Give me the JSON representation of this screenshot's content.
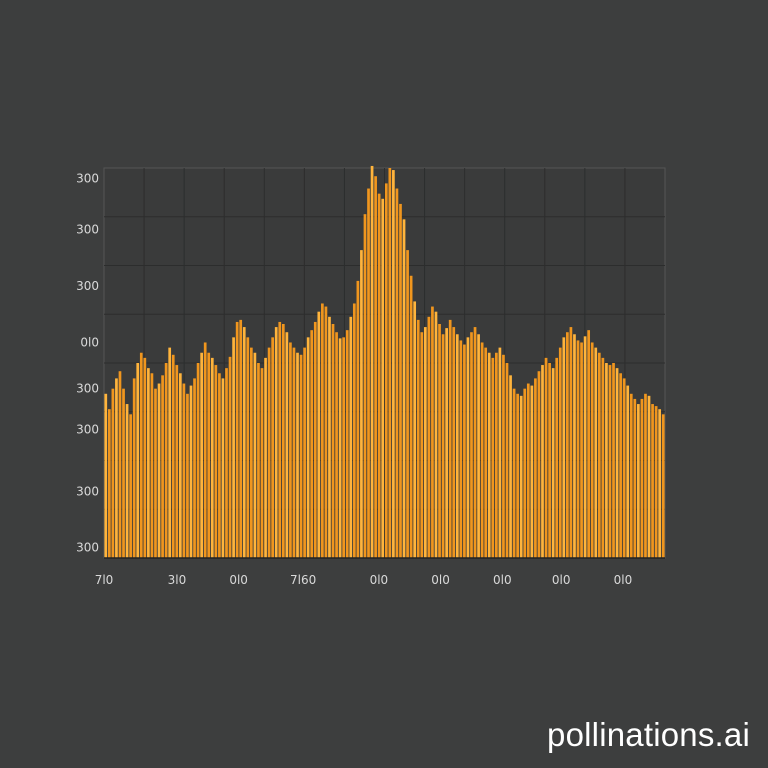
{
  "chart_data": {
    "type": "bar",
    "title": "",
    "xlabel": "",
    "ylabel": "",
    "grid": true,
    "ylim": [
      0,
      380
    ],
    "x_tick_labels": [
      "7l0",
      "3l0",
      "0l0",
      "7l60",
      "0l0",
      "0l0",
      "0l0",
      "0l0",
      "0l0"
    ],
    "y_tick_labels": [
      "300",
      "300",
      "300",
      "0l0",
      "300",
      "300",
      "300",
      "300"
    ],
    "x_tick_fractions": [
      0.0,
      0.13,
      0.24,
      0.355,
      0.49,
      0.6,
      0.71,
      0.815,
      0.925
    ],
    "y_tick_values": [
      370,
      320,
      265,
      210,
      165,
      125,
      65,
      10
    ],
    "color": "#f0961e",
    "highlight_color": "#ffb43c",
    "values": [
      160,
      145,
      165,
      175,
      182,
      165,
      150,
      140,
      175,
      190,
      200,
      195,
      185,
      180,
      165,
      170,
      178,
      190,
      205,
      198,
      188,
      180,
      170,
      160,
      168,
      175,
      190,
      200,
      210,
      200,
      195,
      188,
      180,
      175,
      185,
      196,
      215,
      230,
      232,
      225,
      215,
      205,
      200,
      190,
      185,
      195,
      205,
      215,
      225,
      230,
      228,
      220,
      210,
      205,
      200,
      198,
      205,
      215,
      222,
      230,
      240,
      248,
      245,
      235,
      228,
      220,
      214,
      215,
      222,
      235,
      248,
      270,
      300,
      335,
      360,
      382,
      372,
      355,
      350,
      365,
      380,
      378,
      360,
      345,
      330,
      300,
      275,
      250,
      232,
      220,
      225,
      235,
      245,
      240,
      228,
      218,
      224,
      232,
      225,
      218,
      212,
      208,
      215,
      220,
      225,
      218,
      210,
      205,
      200,
      195,
      200,
      205,
      198,
      190,
      178,
      165,
      160,
      158,
      165,
      170,
      168,
      175,
      182,
      188,
      195,
      190,
      185,
      195,
      205,
      215,
      220,
      225,
      218,
      212,
      210,
      216,
      222,
      210,
      205,
      200,
      195,
      190,
      188,
      190,
      185,
      180,
      175,
      168,
      160,
      155,
      150,
      155,
      160,
      158,
      150,
      148,
      145,
      140
    ]
  },
  "watermark": "pollinations.ai"
}
